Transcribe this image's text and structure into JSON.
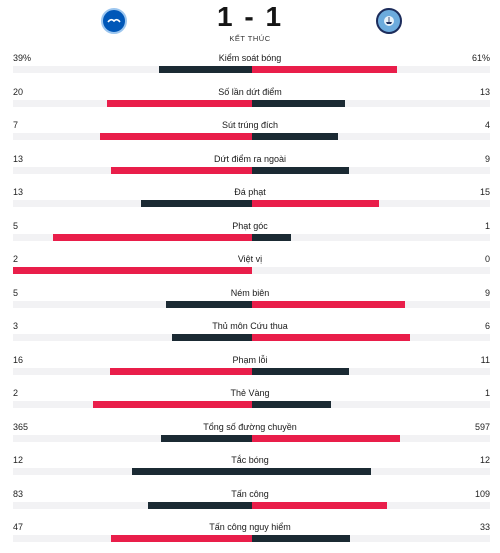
{
  "match": {
    "score": "1 - 1",
    "status": "KẾT THÚC",
    "home_logo_icon": "brighton-crest-icon",
    "away_logo_icon": "man-city-crest-icon"
  },
  "colors": {
    "lead": "#e91e4a",
    "trail": "#1b2a33",
    "track": "#f2f2f4"
  },
  "stats": [
    {
      "label": "Kiểm soát bóng",
      "home": "39%",
      "away": "61%",
      "home_val": 39,
      "away_val": 61
    },
    {
      "label": "Số lần dứt điểm",
      "home": "20",
      "away": "13",
      "home_val": 20,
      "away_val": 13
    },
    {
      "label": "Sút trúng đích",
      "home": "7",
      "away": "4",
      "home_val": 7,
      "away_val": 4
    },
    {
      "label": "Dứt điểm ra ngoài",
      "home": "13",
      "away": "9",
      "home_val": 13,
      "away_val": 9
    },
    {
      "label": "Đá phạt",
      "home": "13",
      "away": "15",
      "home_val": 13,
      "away_val": 15
    },
    {
      "label": "Phạt góc",
      "home": "5",
      "away": "1",
      "home_val": 5,
      "away_val": 1
    },
    {
      "label": "Việt vị",
      "home": "2",
      "away": "0",
      "home_val": 2,
      "away_val": 0
    },
    {
      "label": "Ném biên",
      "home": "5",
      "away": "9",
      "home_val": 5,
      "away_val": 9
    },
    {
      "label": "Thủ môn Cứu thua",
      "home": "3",
      "away": "6",
      "home_val": 3,
      "away_val": 6
    },
    {
      "label": "Phạm lỗi",
      "home": "16",
      "away": "11",
      "home_val": 16,
      "away_val": 11
    },
    {
      "label": "Thẻ Vàng",
      "home": "2",
      "away": "1",
      "home_val": 2,
      "away_val": 1
    },
    {
      "label": "Tổng số đường chuyền",
      "home": "365",
      "away": "597",
      "home_val": 365,
      "away_val": 597
    },
    {
      "label": "Tắc bóng",
      "home": "12",
      "away": "12",
      "home_val": 12,
      "away_val": 12
    },
    {
      "label": "Tấn công",
      "home": "83",
      "away": "109",
      "home_val": 83,
      "away_val": 109
    },
    {
      "label": "Tấn công nguy hiểm",
      "home": "47",
      "away": "33",
      "home_val": 47,
      "away_val": 33
    }
  ]
}
